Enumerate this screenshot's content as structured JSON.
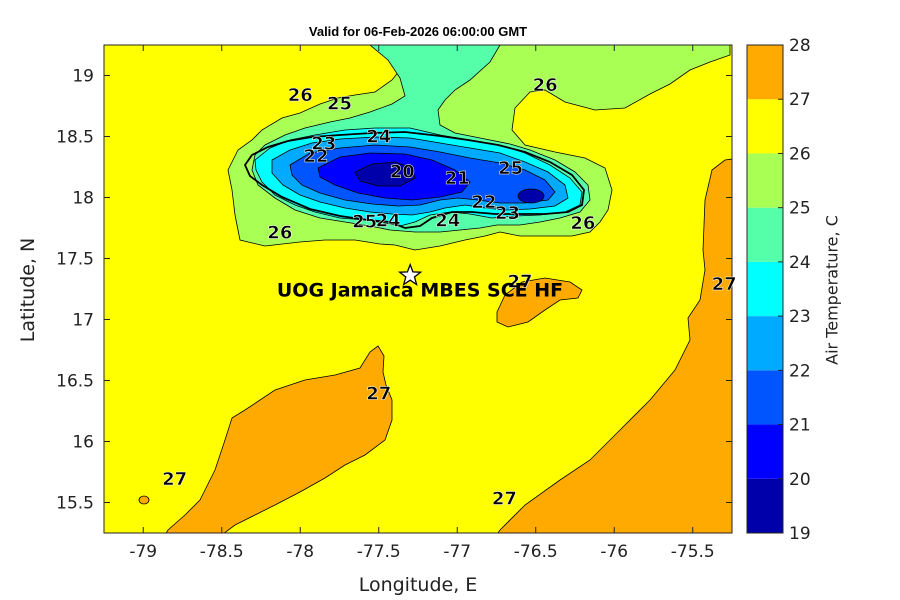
{
  "title": "Valid for 06-Feb-2026 06:00:00 GMT",
  "axes": {
    "xlabel": "Longitude, E",
    "ylabel": "Latitude, N",
    "xlim": [
      -79.25,
      -75.25
    ],
    "ylim": [
      15.25,
      19.25
    ],
    "xticks": [
      "-79",
      "-78.5",
      "-78",
      "-77.5",
      "-77",
      "-76.5",
      "-76",
      "-75.5"
    ],
    "yticks": [
      "15.5",
      "16",
      "16.5",
      "17",
      "17.5",
      "18",
      "18.5",
      "19"
    ]
  },
  "colorbar": {
    "label": "Air Temperature, C",
    "levels": [
      "19",
      "20",
      "21",
      "22",
      "23",
      "24",
      "25",
      "26",
      "27",
      "28"
    ],
    "colors": [
      "#0000aa",
      "#0000ff",
      "#0055ff",
      "#00aaff",
      "#00ffff",
      "#55ffaa",
      "#aaff55",
      "#ffff00",
      "#ffaa00",
      "#ff5500"
    ]
  },
  "station": {
    "label": "UOG Jamaica MBES SCE HF",
    "lon": -77.3,
    "lat": 17.36
  },
  "contour_labels": [
    {
      "text": "26",
      "lon": -78.0,
      "lat": 18.85
    },
    {
      "text": "25",
      "lon": -77.75,
      "lat": 18.78
    },
    {
      "text": "26",
      "lon": -76.44,
      "lat": 18.93
    },
    {
      "text": "24",
      "lon": -77.5,
      "lat": 18.51
    },
    {
      "text": "23",
      "lon": -77.85,
      "lat": 18.45
    },
    {
      "text": "22",
      "lon": -77.9,
      "lat": 18.35
    },
    {
      "text": "20",
      "lon": -77.35,
      "lat": 18.22
    },
    {
      "text": "21",
      "lon": -77.0,
      "lat": 18.17
    },
    {
      "text": "25",
      "lon": -76.66,
      "lat": 18.25
    },
    {
      "text": "22",
      "lon": -76.83,
      "lat": 17.97
    },
    {
      "text": "23",
      "lon": -76.68,
      "lat": 17.88
    },
    {
      "text": "24",
      "lon": -77.06,
      "lat": 17.82
    },
    {
      "text": "25",
      "lon": -77.59,
      "lat": 17.81
    },
    {
      "text": "24",
      "lon": -77.44,
      "lat": 17.82
    },
    {
      "text": "26",
      "lon": -78.13,
      "lat": 17.72
    },
    {
      "text": "26",
      "lon": -76.2,
      "lat": 17.8
    },
    {
      "text": "27",
      "lon": -76.6,
      "lat": 17.32
    },
    {
      "text": "27",
      "lon": -75.3,
      "lat": 17.3
    },
    {
      "text": "27",
      "lon": -77.5,
      "lat": 16.4
    },
    {
      "text": "27",
      "lon": -78.8,
      "lat": 15.7
    },
    {
      "text": "27",
      "lon": -76.7,
      "lat": 15.54
    }
  ]
}
